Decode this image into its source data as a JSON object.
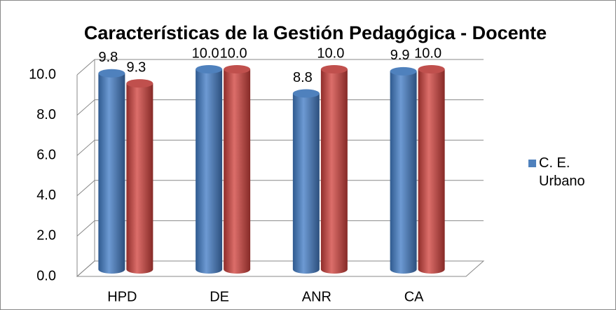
{
  "chart_data": {
    "type": "bar3d",
    "title": "Características de la Gestión Pedagógica - Docente",
    "categories": [
      "HPD",
      "DE",
      "ANR",
      "CA"
    ],
    "series": [
      {
        "name": "C. E. Urbano",
        "color": "#4f81bd",
        "values": [
          9.8,
          10.0,
          8.8,
          9.9
        ],
        "value_labels": [
          "9.8",
          "10.0",
          "8.8",
          "9.9"
        ]
      },
      {
        "color": "#c0504d",
        "values": [
          9.3,
          10.0,
          10.0,
          10.0
        ],
        "value_labels": [
          "9.3",
          "10.0",
          "10.0",
          "10.0"
        ]
      }
    ],
    "ylim": [
      0,
      10
    ],
    "yticks": [
      {
        "value": 0,
        "label": "0.0"
      },
      {
        "value": 2,
        "label": "2.0"
      },
      {
        "value": 4,
        "label": "4.0"
      },
      {
        "value": 6,
        "label": "6.0"
      },
      {
        "value": 8,
        "label": "8.0"
      },
      {
        "value": 10,
        "label": "10.0"
      }
    ],
    "grid": true,
    "legend": "right"
  }
}
